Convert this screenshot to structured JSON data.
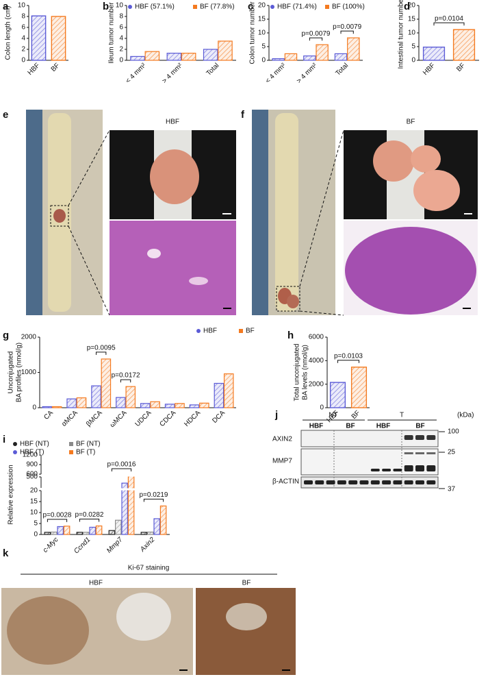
{
  "chart_data": [
    {
      "type": "bar",
      "panel": "a",
      "ylabel": "Colon length (cm)",
      "categories": [
        "HBF",
        "BF"
      ],
      "values": [
        8.1,
        8.0
      ],
      "colors": [
        "#5b5bd6",
        "#f47a20"
      ],
      "ylim": [
        0,
        10
      ],
      "yticks": [
        0,
        2,
        4,
        6,
        8,
        10
      ]
    },
    {
      "type": "bar",
      "panel": "b",
      "ylabel": "Ileum tumor number",
      "categories": [
        "< 4 mm²",
        "> 4 mm²",
        "Total"
      ],
      "series": [
        {
          "name": "HBF (57.1%)",
          "color": "#5b5bd6",
          "values": [
            0.7,
            1.3,
            2.0
          ]
        },
        {
          "name": "BF (77.8%)",
          "color": "#f47a20",
          "values": [
            1.6,
            1.3,
            3.5
          ]
        }
      ],
      "ylim": [
        0,
        10
      ],
      "yticks": [
        0,
        2,
        4,
        6,
        8,
        10
      ]
    },
    {
      "type": "bar",
      "panel": "c",
      "ylabel": "Colon tumor number",
      "categories": [
        "< 4 mm²",
        "> 4 mm²",
        "Total"
      ],
      "series": [
        {
          "name": "HBF (71.4%)",
          "color": "#5b5bd6",
          "values": [
            0.6,
            1.6,
            2.4
          ]
        },
        {
          "name": "BF (100%)",
          "color": "#f47a20",
          "values": [
            2.4,
            5.7,
            8.2
          ]
        }
      ],
      "ylim": [
        0,
        20
      ],
      "yticks": [
        0,
        5,
        10,
        15,
        20
      ],
      "annotations": [
        "p=0.0079",
        "p=0.0079"
      ]
    },
    {
      "type": "bar",
      "panel": "d",
      "ylabel": "Intestinal tumor number",
      "categories": [
        "HBF",
        "BF"
      ],
      "values": [
        4.8,
        11.2
      ],
      "colors": [
        "#5b5bd6",
        "#f47a20"
      ],
      "ylim": [
        0,
        20
      ],
      "yticks": [
        0,
        5,
        10,
        15,
        20
      ],
      "annotations": [
        "p=0.0104"
      ]
    },
    {
      "type": "bar",
      "panel": "g",
      "ylabel": [
        "Unconjugated",
        "BA profiles (nmol/g)"
      ],
      "categories": [
        "CA",
        "αMCA",
        "βMCA",
        "ωMCA",
        "UDCA",
        "CDCA",
        "HDCA",
        "DCA"
      ],
      "series": [
        {
          "name": "HBF",
          "color": "#5b5bd6",
          "values": [
            30,
            250,
            620,
            290,
            120,
            100,
            80,
            690
          ]
        },
        {
          "name": "BF",
          "color": "#f47a20",
          "values": [
            30,
            280,
            1380,
            600,
            170,
            120,
            130,
            960
          ]
        }
      ],
      "ylim": [
        0,
        2000
      ],
      "yticks": [
        0,
        1000,
        2000
      ],
      "annotations": [
        "p=0.0095",
        "p=0.0172"
      ]
    },
    {
      "type": "bar",
      "panel": "h",
      "ylabel": [
        "Total unconjugated",
        "BA levels (nmol/g)"
      ],
      "categories": [
        "HBF",
        "BF"
      ],
      "values": [
        2150,
        3450
      ],
      "colors": [
        "#5b5bd6",
        "#f47a20"
      ],
      "ylim": [
        0,
        6000
      ],
      "yticks": [
        0,
        2000,
        4000,
        6000
      ],
      "annotations": [
        "p=0.0103"
      ]
    },
    {
      "type": "broken-bar",
      "panel": "i",
      "ylabel": "Relative expression",
      "categories": [
        "c-Myc",
        "Ccnd1",
        "Mmp7",
        "Axin2"
      ],
      "series": [
        {
          "name": "HBF (NT)",
          "color": "#222222",
          "values": [
            1,
            1,
            1.8,
            1
          ]
        },
        {
          "name": "BF (NT)",
          "color": "#8a8a8a",
          "values": [
            1.1,
            1,
            6.5,
            1.1
          ]
        },
        {
          "name": "HBF (T)",
          "color": "#5b5bd6",
          "values": [
            3.6,
            3.3,
            330,
            7.2
          ]
        },
        {
          "name": "BF (T)",
          "color": "#f47a20",
          "values": [
            3.8,
            3.9,
            530,
            13
          ]
        }
      ],
      "segments": [
        {
          "ylim": [
            0,
            20
          ],
          "yticks": [
            0,
            5,
            10,
            15,
            20
          ]
        },
        {
          "ylim": [
            200,
            500
          ],
          "yticks": [
            500
          ]
        },
        {
          "ylim": [
            600,
            1200
          ],
          "yticks": [
            600,
            900,
            1200
          ]
        }
      ],
      "annotations": [
        "p=0.0028",
        "p=0.0282",
        "p=0.0016",
        "p=0.0219"
      ]
    }
  ],
  "images": [
    {
      "panel": "e",
      "title": "HBF"
    },
    {
      "panel": "f",
      "title": "BF"
    }
  ],
  "blot": {
    "panel": "j",
    "groups": [
      "NT",
      "T"
    ],
    "lanes": [
      "HBF",
      "BF",
      "HBF",
      "BF"
    ],
    "unit": "(kDa)",
    "rows": [
      "AXIN2",
      "MMP7",
      "β-ACTIN"
    ],
    "markers": [
      "100",
      "25",
      "37"
    ]
  },
  "staining": {
    "panel": "k",
    "title": "Ki-67 staining",
    "labels": [
      "HBF",
      "BF"
    ]
  }
}
